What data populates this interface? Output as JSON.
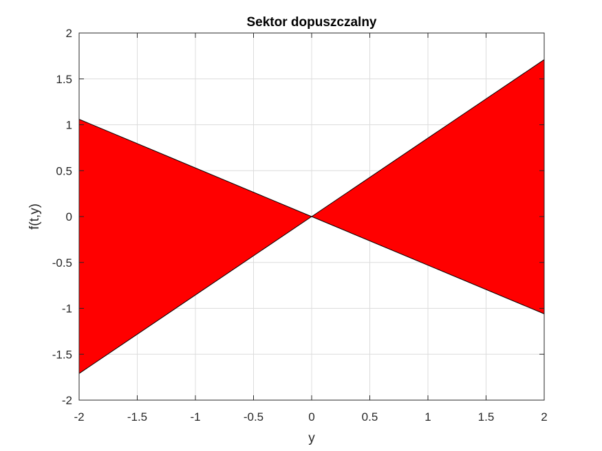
{
  "chart_data": {
    "type": "area",
    "title": "Sektor dopuszczalny",
    "xlabel": "y",
    "ylabel": "f(t,y)",
    "xlim": [
      -2,
      2
    ],
    "ylim": [
      -2,
      2
    ],
    "x_ticks": [
      -2,
      -1.5,
      -1,
      -0.5,
      0,
      0.5,
      1,
      1.5,
      2
    ],
    "y_ticks": [
      -2,
      -1.5,
      -1,
      -0.5,
      0,
      0.5,
      1,
      1.5,
      2
    ],
    "x_tick_labels": [
      "-2",
      "-1.5",
      "-1",
      "-0.5",
      "0",
      "0.5",
      "1",
      "1.5",
      "2"
    ],
    "y_tick_labels": [
      "-2",
      "-1.5",
      "-1",
      "-0.5",
      "0",
      "0.5",
      "1",
      "1.5",
      "2"
    ],
    "grid": true,
    "legend": "none",
    "regions": [
      {
        "points": [
          [
            -2,
            1.06
          ],
          [
            0,
            0
          ],
          [
            -2,
            -1.71
          ]
        ],
        "color": "#ff0000",
        "edge": "#000000"
      },
      {
        "points": [
          [
            2,
            1.71
          ],
          [
            0,
            0
          ],
          [
            2,
            -1.06
          ]
        ],
        "color": "#ff0000",
        "edge": "#000000"
      }
    ],
    "boundary_lines": [
      {
        "slope": 0.855,
        "x": [
          -2,
          2
        ],
        "y": [
          -1.71,
          1.71
        ]
      },
      {
        "slope": -0.53,
        "x": [
          -2,
          2
        ],
        "y": [
          1.06,
          -1.06
        ]
      }
    ]
  }
}
